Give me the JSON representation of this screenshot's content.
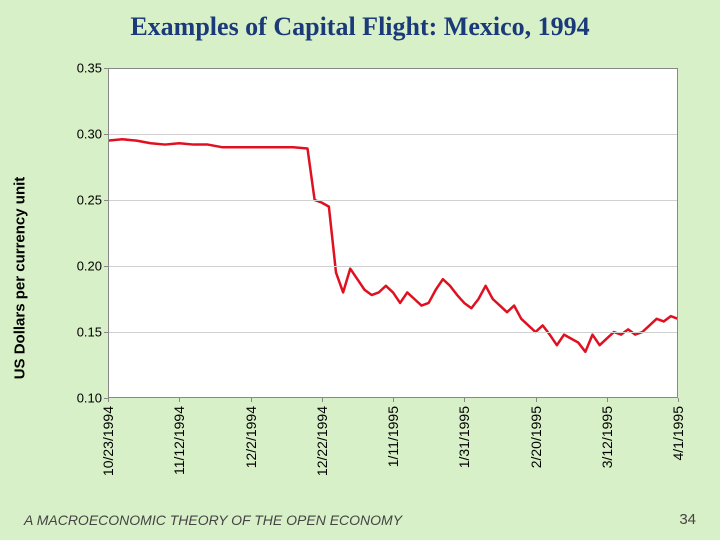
{
  "title": "Examples of Capital Flight:  Mexico, 1994",
  "title_fontsize": 26,
  "footer": "A MACROECONOMIC THEORY OF THE OPEN ECONOMY",
  "footer_fontsize": 14,
  "page_number": "34",
  "page_number_fontsize": 15,
  "chart": {
    "type": "line",
    "background_color": "#ffffff",
    "page_background": "#d8f0c8",
    "border_color": "#888888",
    "grid_color": "#d0d0d0",
    "line_color": "#e01020",
    "line_width": 2.5,
    "ylabel": "US Dollars per currency unit",
    "ylabel_fontsize": 15,
    "ylim": [
      0.1,
      0.35
    ],
    "yticks": [
      0.1,
      0.15,
      0.2,
      0.25,
      0.3,
      0.35
    ],
    "ytick_labels": [
      "0.10",
      "0.15",
      "0.20",
      "0.25",
      "0.30",
      "0.35"
    ],
    "ytick_fontsize": 13,
    "xtick_labels": [
      "10/23/1994",
      "11/12/1994",
      "12/2/1994",
      "12/22/1994",
      "1/11/1995",
      "1/31/1995",
      "2/20/1995",
      "3/12/1995",
      "4/1/1995"
    ],
    "xtick_positions": [
      0,
      20,
      40,
      60,
      80,
      100,
      120,
      140,
      160
    ],
    "xtick_fontsize": 14,
    "xlim": [
      0,
      160
    ],
    "series": {
      "x": [
        0,
        4,
        8,
        12,
        16,
        20,
        24,
        28,
        32,
        36,
        40,
        44,
        48,
        52,
        56,
        58,
        60,
        62,
        64,
        66,
        68,
        70,
        72,
        74,
        76,
        78,
        80,
        82,
        84,
        86,
        88,
        90,
        92,
        94,
        96,
        98,
        100,
        102,
        104,
        106,
        108,
        110,
        112,
        114,
        116,
        118,
        120,
        122,
        124,
        126,
        128,
        130,
        132,
        134,
        136,
        138,
        140,
        142,
        144,
        146,
        148,
        150,
        152,
        154,
        156,
        158,
        160
      ],
      "y": [
        0.295,
        0.296,
        0.295,
        0.293,
        0.292,
        0.293,
        0.292,
        0.292,
        0.29,
        0.29,
        0.29,
        0.29,
        0.29,
        0.29,
        0.289,
        0.25,
        0.248,
        0.245,
        0.195,
        0.18,
        0.198,
        0.19,
        0.182,
        0.178,
        0.18,
        0.185,
        0.18,
        0.172,
        0.18,
        0.175,
        0.17,
        0.172,
        0.182,
        0.19,
        0.185,
        0.178,
        0.172,
        0.168,
        0.175,
        0.185,
        0.175,
        0.17,
        0.165,
        0.17,
        0.16,
        0.155,
        0.15,
        0.155,
        0.148,
        0.14,
        0.148,
        0.145,
        0.142,
        0.135,
        0.148,
        0.14,
        0.145,
        0.15,
        0.148,
        0.152,
        0.148,
        0.15,
        0.155,
        0.16,
        0.158,
        0.162,
        0.16
      ]
    }
  }
}
